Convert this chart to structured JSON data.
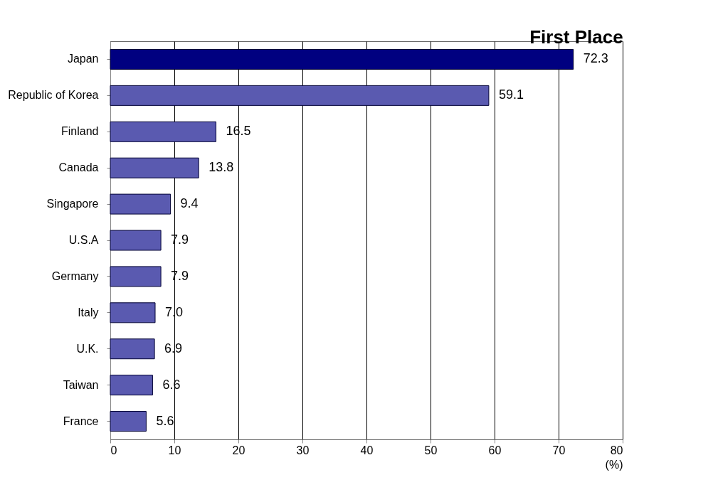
{
  "chart_data": {
    "type": "bar",
    "orientation": "horizontal",
    "categories": [
      "Japan",
      "Republic of Korea",
      "Finland",
      "Canada",
      "Singapore",
      "U.S.A",
      "Germany",
      "Italy",
      "U.K.",
      "Taiwan",
      "France"
    ],
    "values": [
      72.3,
      59.1,
      16.5,
      13.8,
      9.4,
      7.9,
      7.9,
      7.0,
      6.9,
      6.6,
      5.6
    ],
    "value_labels": [
      "72.3",
      "59.1",
      "16.5",
      "13.8",
      "9.4",
      "7.9",
      "7.9",
      "7.0",
      "6.9",
      "6.6",
      "5.6"
    ],
    "colors": [
      "#000080",
      "#5a5ab0",
      "#5a5ab0",
      "#5a5ab0",
      "#5a5ab0",
      "#5a5ab0",
      "#5a5ab0",
      "#5a5ab0",
      "#5a5ab0",
      "#5a5ab0",
      "#5a5ab0"
    ],
    "xlim": [
      0,
      80
    ],
    "xticks": [
      0,
      10,
      20,
      30,
      40,
      50,
      60,
      70,
      80
    ],
    "xlabel": "(%)",
    "grid": "x",
    "annotations": [
      {
        "text": "First Place",
        "x": 72.3,
        "y": "Japan"
      }
    ]
  }
}
